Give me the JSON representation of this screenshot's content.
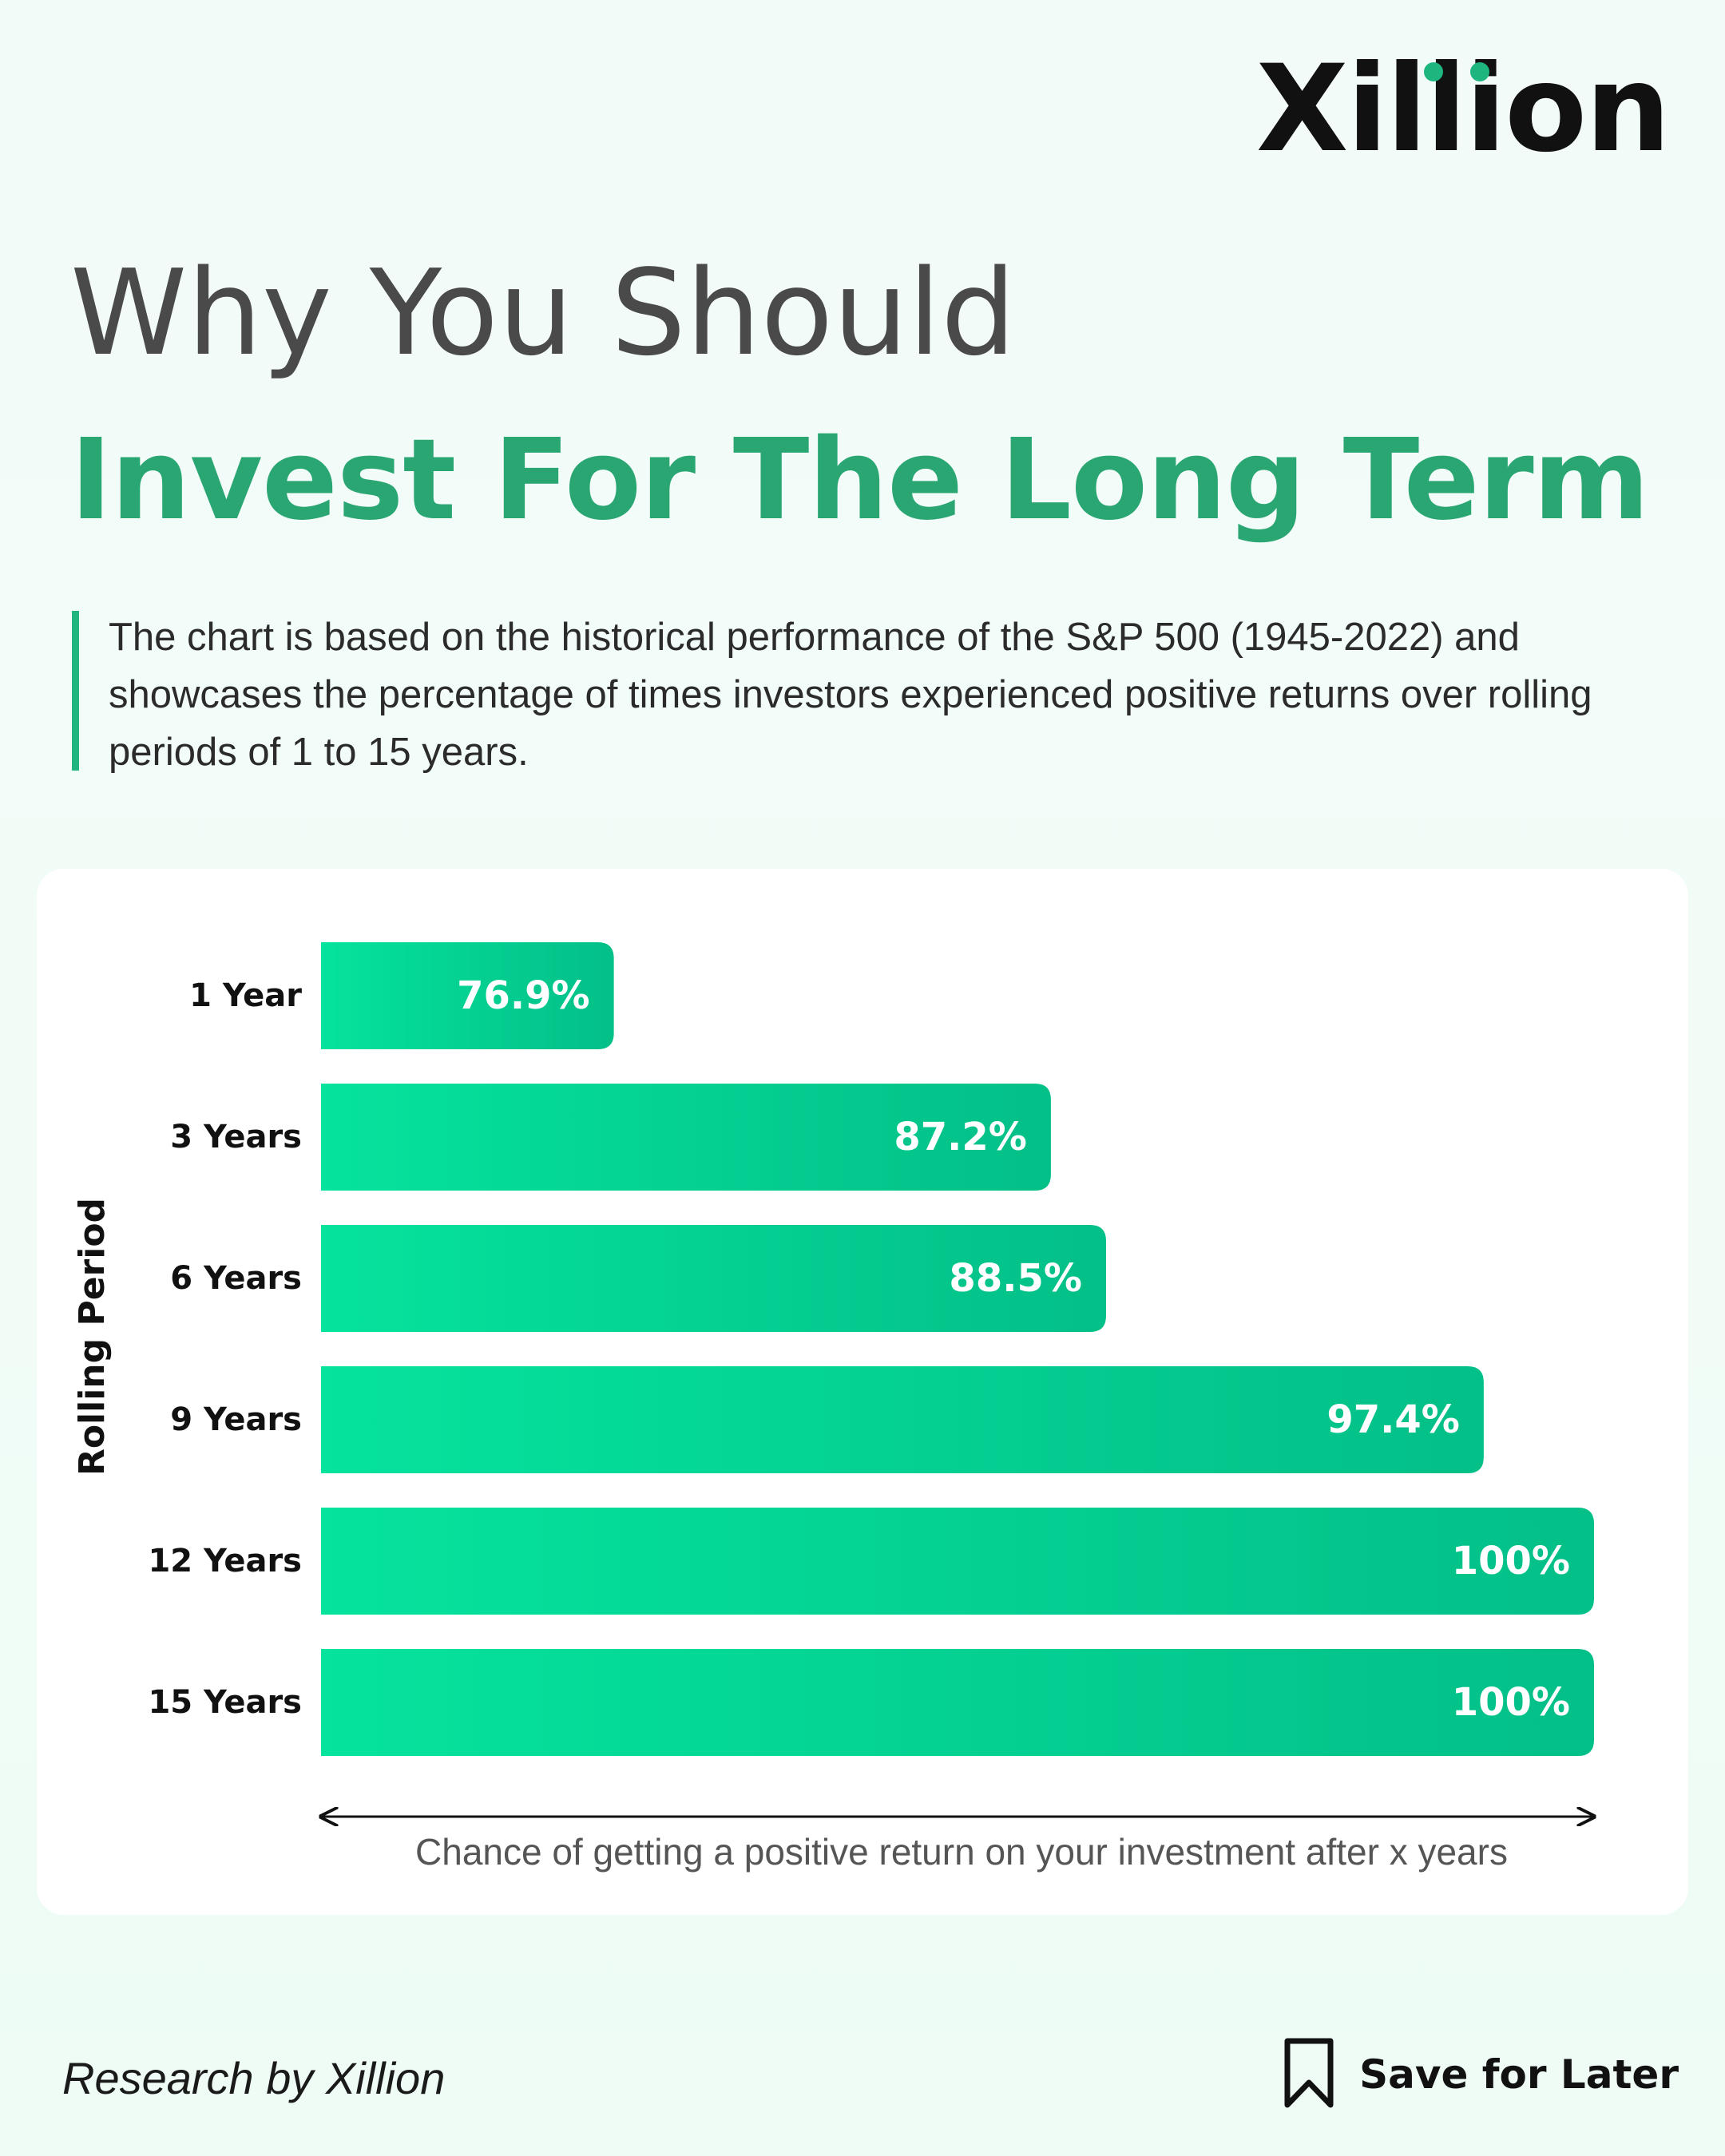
{
  "brand": {
    "name": "Xillion",
    "accent_color": "#2aa673"
  },
  "title": {
    "line1": "Why You Should",
    "line2": "Invest For The Long Term"
  },
  "description": "The chart is based on the historical performance of the S&P 500 (1945-2022) and showcases the percentage of times investors experienced positive returns over rolling periods of 1 to 15 years.",
  "chart_data": {
    "type": "bar",
    "orientation": "horizontal",
    "categories": [
      "1 Year",
      "3 Years",
      "6 Years",
      "9 Years",
      "12 Years",
      "15 Years"
    ],
    "values": [
      76.9,
      87.2,
      88.5,
      97.4,
      100,
      100
    ],
    "value_labels": [
      "76.9%",
      "87.2%",
      "88.5%",
      "97.4%",
      "100%",
      "100%"
    ],
    "ylabel": "Rolling Period",
    "xlabel": "Chance of getting a positive return on your investment after x years",
    "xlim": [
      70,
      100
    ],
    "grid": false,
    "bar_color_start": "#05e39d",
    "bar_color_end": "#03bf88"
  },
  "footer": {
    "credit": "Research by Xillion",
    "save_label": "Save for Later",
    "save_icon": "bookmark-icon"
  }
}
